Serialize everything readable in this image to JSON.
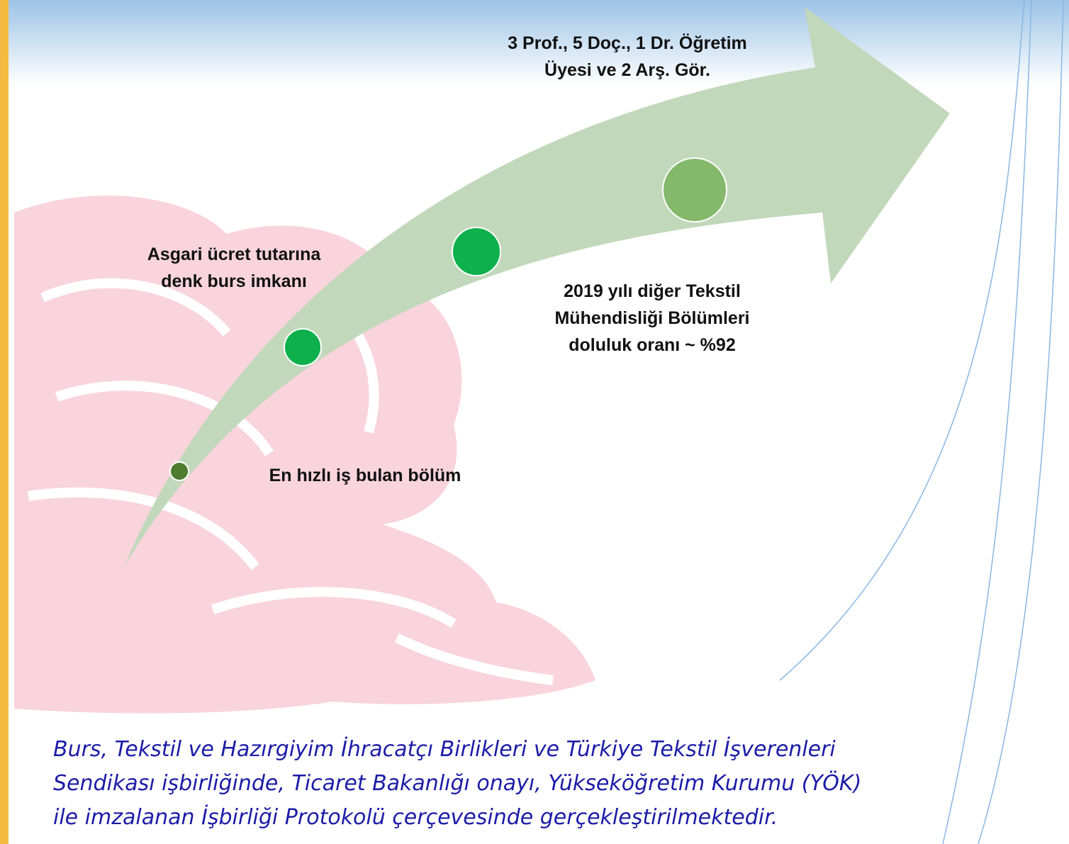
{
  "milestones": [
    {
      "label": "En hızlı iş bulan bölüm"
    },
    {
      "label": "Asgari ücret tutarına denk burs imkanı"
    },
    {
      "label": "2019 yılı diğer Tekstil Mühendisliği Bölümleri doluluk oranı ~ %92"
    },
    {
      "label": "3 Prof., 5 Doç., 1 Dr. Öğretim Üyesi ve 2 Arş. Gör."
    }
  ],
  "footer": {
    "lines": [
      "Burs, Tekstil ve Hazırgiyim İhracatçı Birlikleri ve Türkiye Tekstil İşverenleri",
      "Sendikası işbirliğinde, Ticaret Bakanlığı onayı, Yükseköğretim Kurumu (YÖK)",
      "ile imzalanan İşbirliği Protokolü çerçevesinde gerçekleştirilmektedir."
    ]
  }
}
